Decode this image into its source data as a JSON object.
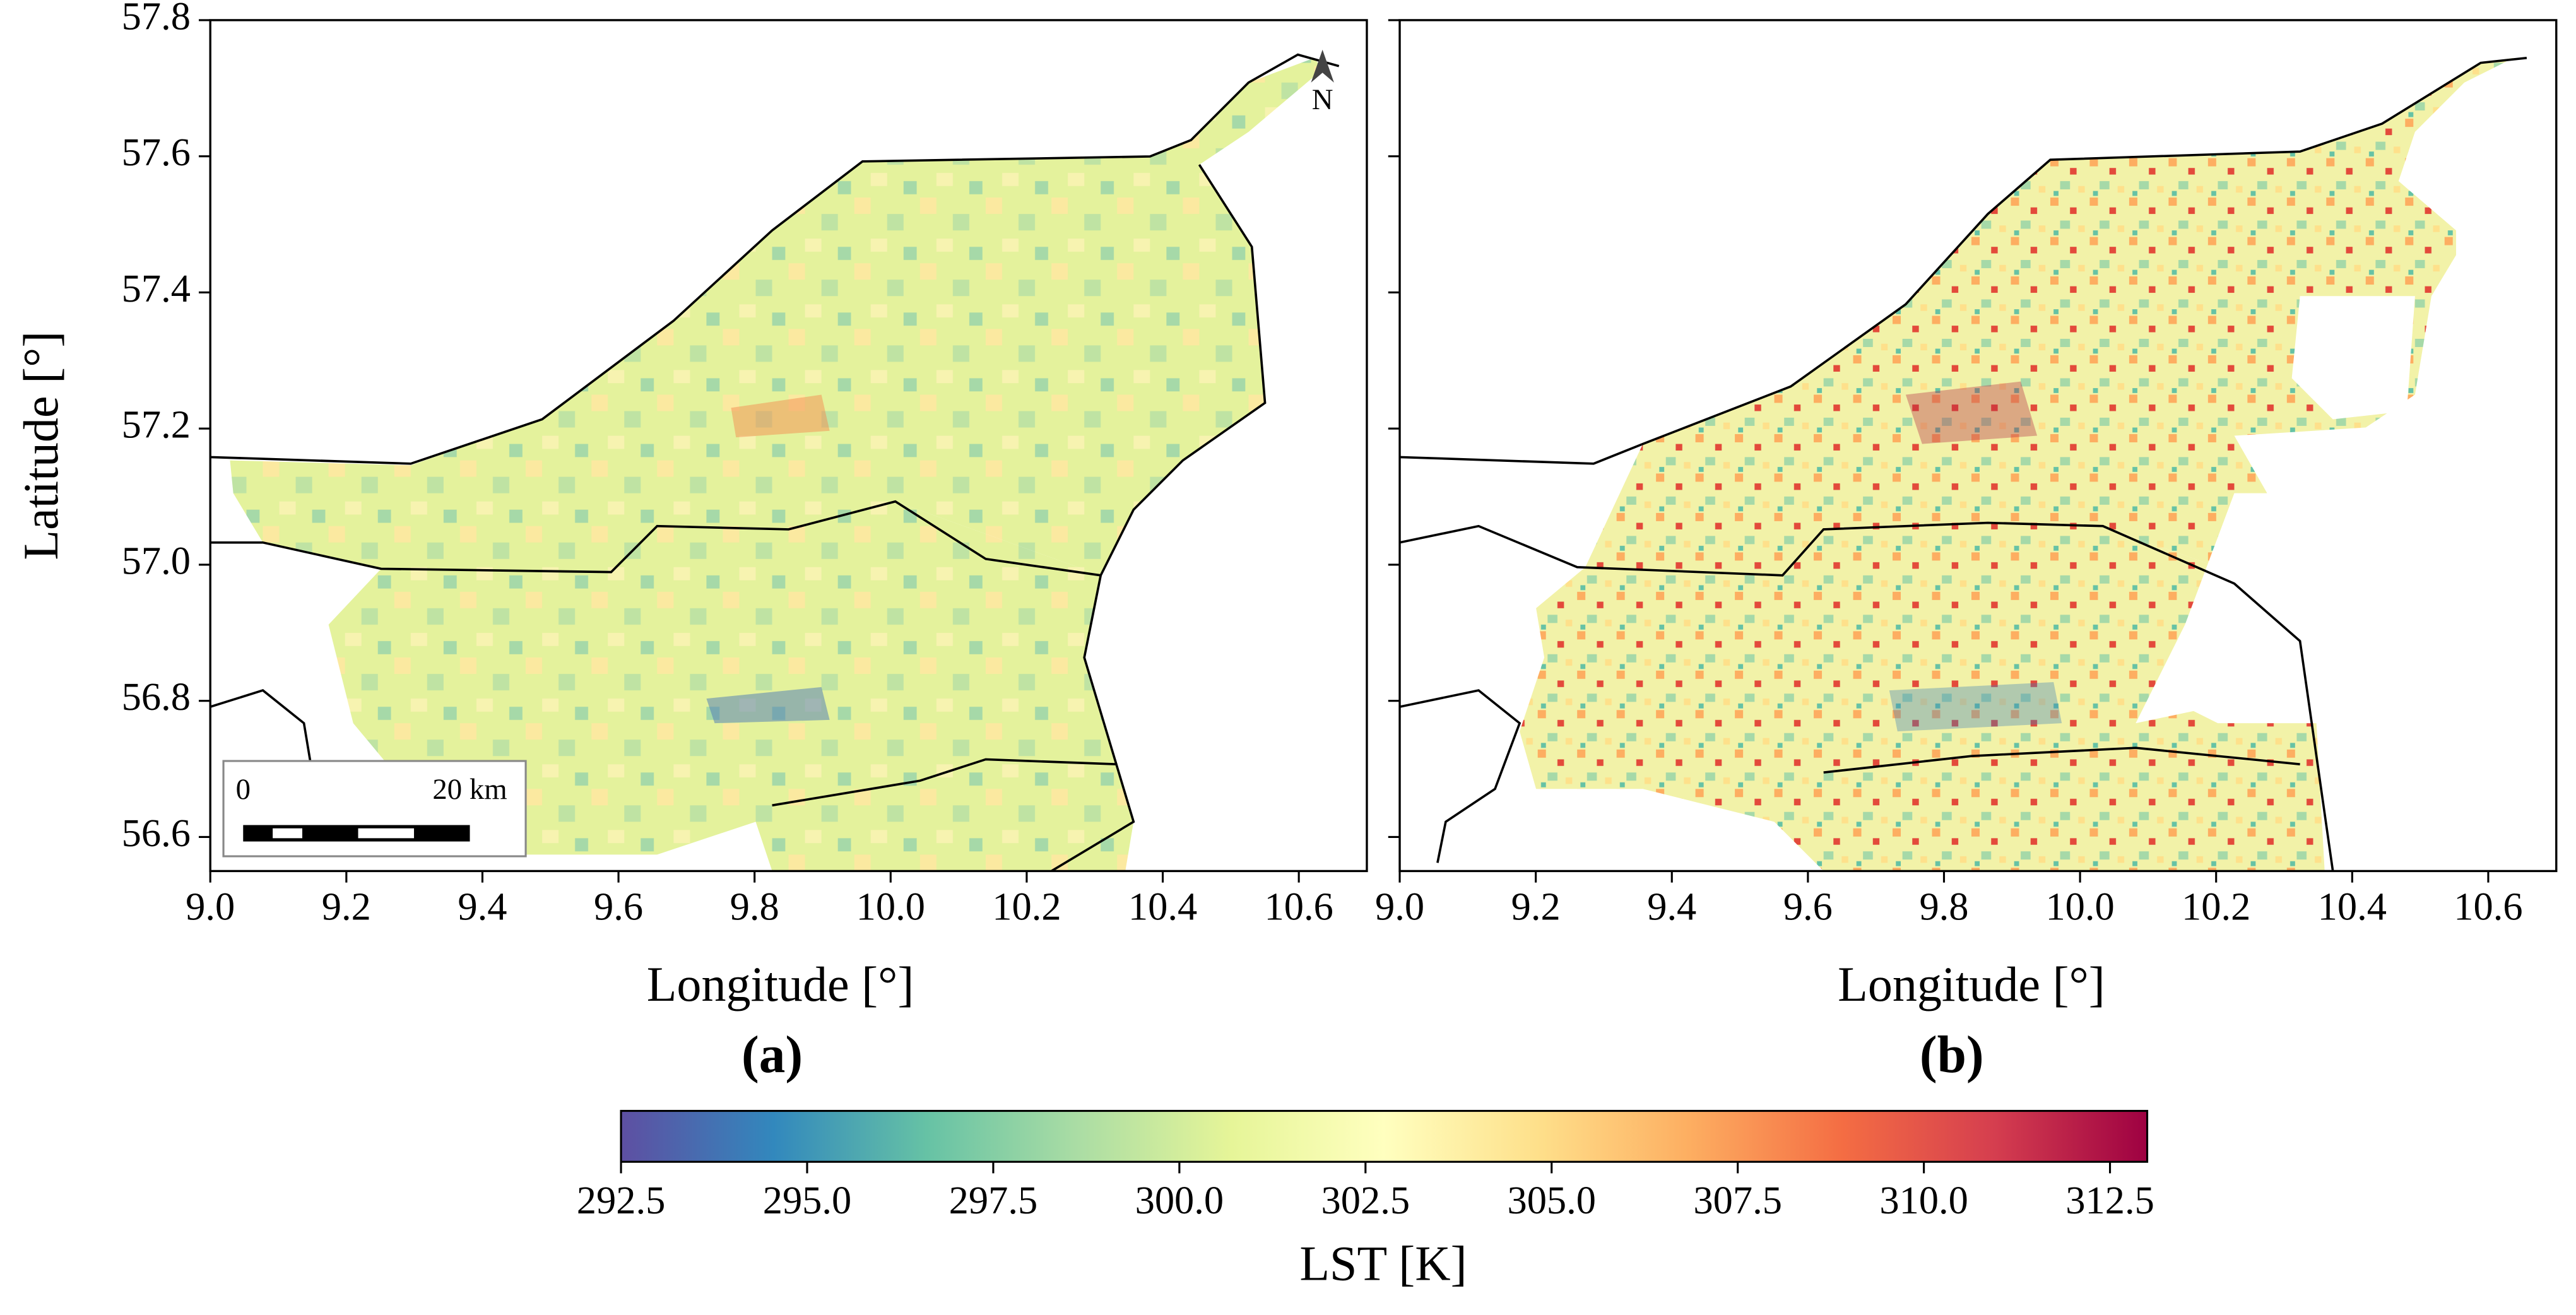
{
  "chart_data": [
    {
      "type": "map",
      "xlabel": "Longitude [°]",
      "ylabel": "Latitude [°]",
      "panel_label": "(a)",
      "xlim": [
        9.0,
        10.7
      ],
      "ylim": [
        56.55,
        57.8
      ],
      "xticks": [
        {
          "value": 9.0,
          "label": "9.0"
        },
        9.2,
        9.4,
        9.6,
        9.8,
        {
          "value": 10.0,
          "label": "10.0"
        },
        10.2,
        10.4,
        10.6
      ],
      "yticks": [
        56.6,
        56.8,
        {
          "value": 57.0,
          "label": "57.0"
        },
        57.2,
        57.4,
        57.6,
        57.8
      ],
      "ytick_labels": true,
      "scalebar_labels": [
        "0",
        "20 km"
      ],
      "north_label": "N"
    },
    {
      "type": "map",
      "xlabel": "Longitude [°]",
      "panel_label": "(b)",
      "xlim": [
        9.0,
        10.7
      ],
      "ylim": [
        56.55,
        57.8
      ],
      "xticks": [
        {
          "value": 9.0,
          "label": "9.0"
        },
        9.2,
        9.4,
        9.6,
        9.8,
        {
          "value": 10.0,
          "label": "10.0"
        },
        10.2,
        10.4,
        10.6
      ],
      "yticks": [
        56.6,
        56.8,
        {
          "value": 57.0,
          "label": "57.0"
        },
        57.2,
        57.4,
        57.6,
        57.8
      ],
      "ytick_labels": false
    },
    {
      "type": "colorbar",
      "label": "LST [K]",
      "clim": [
        292.5,
        313
      ],
      "ticks": [
        292.5,
        {
          "value": 295.0,
          "label": "295.0"
        },
        297.5,
        {
          "value": 300.0,
          "label": "300.0"
        },
        302.5,
        {
          "value": 305.0,
          "label": "305.0"
        },
        307.5,
        {
          "value": 310.0,
          "label": "310.0"
        },
        312.5
      ],
      "colormap": [
        "#5e4fa2",
        "#3288bd",
        "#66c2a5",
        "#abdda4",
        "#e6f598",
        "#ffffbf",
        "#fee08b",
        "#fdae61",
        "#f46d43",
        "#d53e4f",
        "#9e0142"
      ]
    }
  ]
}
